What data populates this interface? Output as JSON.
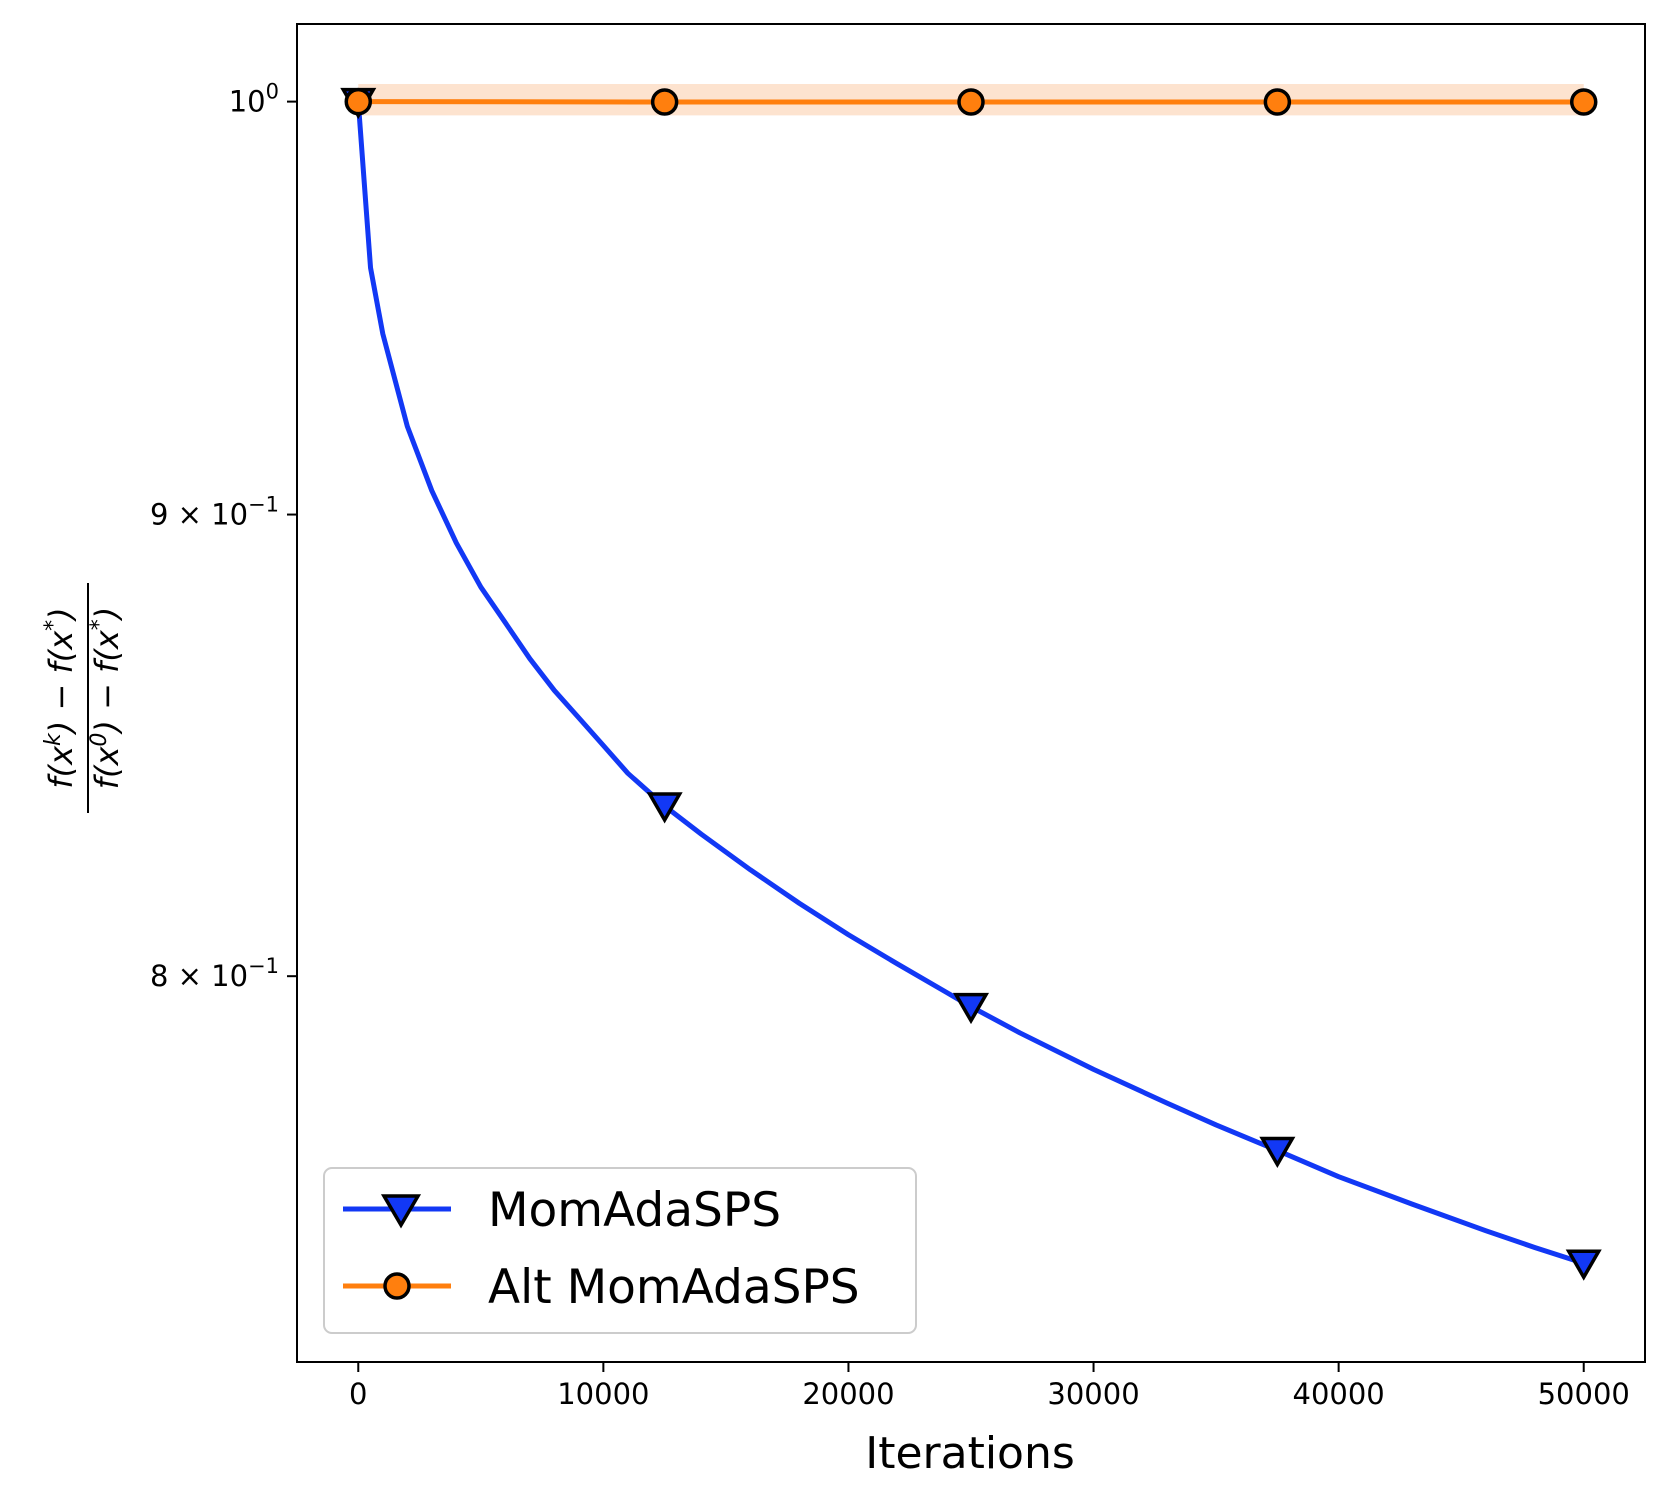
{
  "chart_data": {
    "type": "line",
    "title": "",
    "xlabel": "Iterations",
    "ylabel": {
      "numerator": "f(x^k) − f(x^*)",
      "denominator": "f(x^0) − f(x^*)"
    },
    "y_scale": "log",
    "xlim": [
      -2500,
      52500
    ],
    "ylim": [
      0.725,
      1.02
    ],
    "grid": false,
    "legend_position": "lower-left",
    "x_ticks": [
      0,
      10000,
      20000,
      30000,
      40000,
      50000
    ],
    "x_tick_labels": [
      "0",
      "10000",
      "20000",
      "30000",
      "40000",
      "50000"
    ],
    "y_ticks": [
      {
        "value": 1.0,
        "mantissa": "",
        "base": "10",
        "exponent": "0"
      },
      {
        "value": 0.9,
        "mantissa": "9",
        "base": "10",
        "exponent": "−1"
      },
      {
        "value": 0.8,
        "mantissa": "8",
        "base": "10",
        "exponent": "−1"
      }
    ],
    "series": [
      {
        "name": "MomAdaSPS",
        "color": "#1238f5",
        "marker": "triangle-down",
        "marker_x": [
          0,
          12500,
          25000,
          37500,
          50000
        ],
        "x": [
          0,
          500,
          1000,
          2000,
          3000,
          4000,
          5000,
          6000,
          7000,
          8000,
          9000,
          10000,
          11000,
          12500,
          14000,
          16000,
          18000,
          20000,
          22000,
          24000,
          25000,
          27000,
          30000,
          33000,
          35000,
          37500,
          40000,
          43000,
          46000,
          48000,
          50000
        ],
        "values": [
          1.0,
          0.9585,
          0.9425,
          0.9205,
          0.9055,
          0.8935,
          0.8835,
          0.8755,
          0.8675,
          0.8605,
          0.8545,
          0.8485,
          0.8425,
          0.8355,
          0.8295,
          0.822,
          0.815,
          0.8085,
          0.8025,
          0.7967,
          0.7938,
          0.7885,
          0.7812,
          0.7745,
          0.7702,
          0.7652,
          0.7601,
          0.7548,
          0.7497,
          0.7465,
          0.7435
        ]
      },
      {
        "name": "Alt MomAdaSPS",
        "color": "#ff7f0e",
        "band_color": "#fde3cf",
        "marker": "circle",
        "marker_x": [
          0,
          12500,
          25000,
          37500,
          50000
        ],
        "x": [
          0,
          12500,
          25000,
          37500,
          50000
        ],
        "values": [
          1.0,
          0.9999,
          0.9999,
          0.9999,
          0.9999
        ],
        "band_lower": [
          0.9965,
          0.9965,
          0.9965,
          0.9965,
          0.9965
        ],
        "band_upper": [
          1.0045,
          1.0045,
          1.0045,
          1.0045,
          1.0045
        ]
      }
    ]
  }
}
